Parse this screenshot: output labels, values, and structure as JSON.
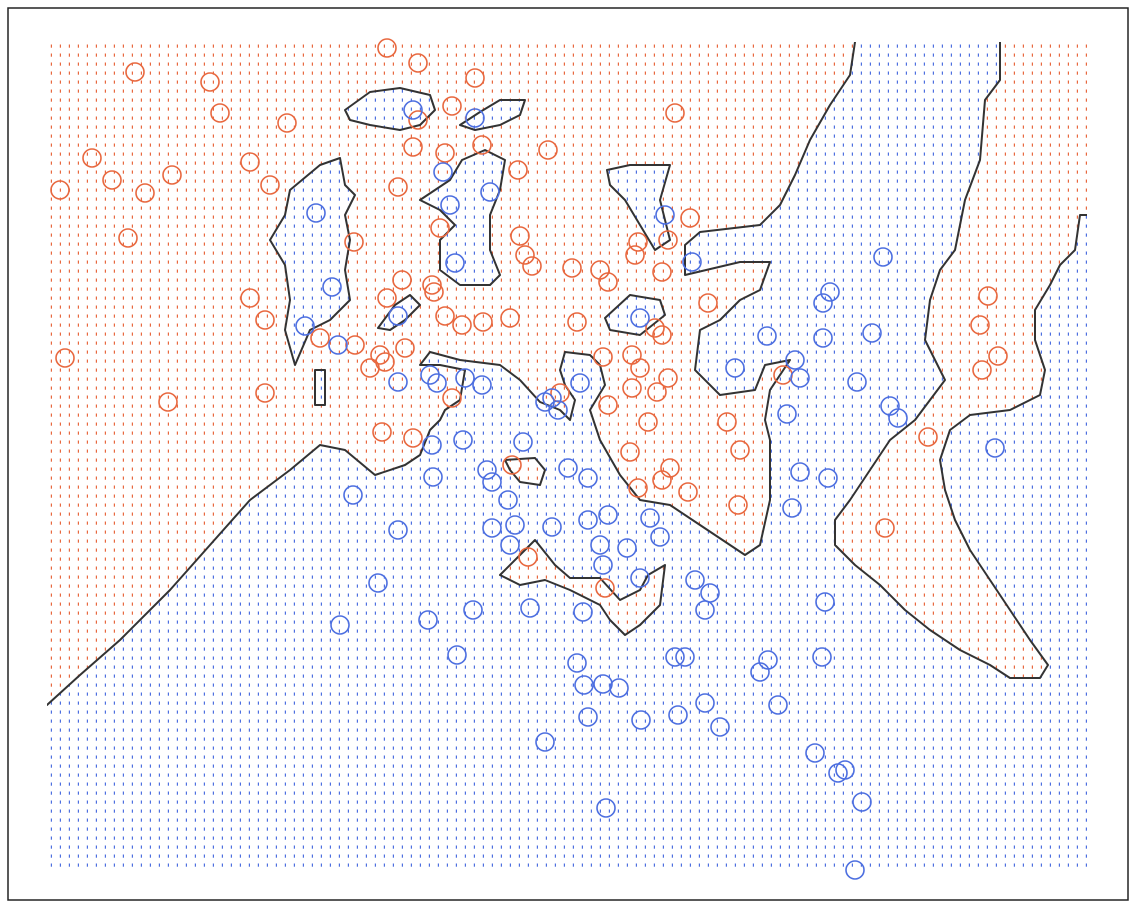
{
  "chart_data": {
    "type": "scatter",
    "xlim": [
      47,
      1087
    ],
    "ylim": [
      868,
      42
    ],
    "region_colors": [
      "#e8683f",
      "#4d6fe0"
    ],
    "series": [
      {
        "color": "#e8683f",
        "x": [
          387,
          418,
          135,
          210,
          475,
          220,
          287,
          452,
          418,
          675,
          92,
          112,
          60,
          145,
          172,
          250,
          270,
          413,
          445,
          482,
          548,
          518,
          398,
          128,
          440,
          354,
          520,
          525,
          532,
          638,
          635,
          668,
          690,
          572,
          600,
          608,
          662,
          250,
          402,
          387,
          432,
          434,
          265,
          445,
          462,
          483,
          510,
          577,
          655,
          662,
          708,
          65,
          320,
          355,
          380,
          405,
          385,
          370,
          603,
          632,
          640,
          668,
          632,
          657,
          608,
          648,
          168,
          265,
          560,
          452,
          382,
          413,
          512,
          630,
          670,
          662,
          688,
          638,
          740,
          727,
          738,
          783,
          928,
          980,
          988,
          998,
          982,
          885,
          528,
          605
        ],
        "y": [
          48,
          63,
          72,
          82,
          78,
          113,
          123,
          106,
          120,
          113,
          158,
          180,
          190,
          193,
          175,
          162,
          185,
          147,
          153,
          145,
          150,
          170,
          187,
          238,
          228,
          242,
          236,
          255,
          266,
          242,
          255,
          240,
          218,
          268,
          270,
          282,
          272,
          298,
          280,
          298,
          285,
          292,
          320,
          316,
          325,
          322,
          318,
          322,
          328,
          335,
          303,
          358,
          338,
          345,
          355,
          348,
          362,
          368,
          357,
          355,
          368,
          378,
          388,
          392,
          405,
          422,
          402,
          393,
          393,
          398,
          432,
          438,
          465,
          452,
          468,
          480,
          492,
          488,
          450,
          422,
          505,
          375,
          437,
          325,
          296,
          356,
          370,
          528,
          557,
          588
        ]
      },
      {
        "color": "#4d6fe0",
        "x": [
          413,
          475,
          316,
          450,
          490,
          443,
          665,
          455,
          692,
          883,
          332,
          398,
          305,
          338,
          640,
          767,
          823,
          830,
          823,
          872,
          430,
          465,
          437,
          398,
          482,
          580,
          795,
          735,
          800,
          857,
          890,
          898,
          787,
          552,
          558,
          545,
          432,
          463,
          523,
          433,
          487,
          492,
          568,
          588,
          800,
          828,
          995,
          353,
          508,
          792,
          398,
          492,
          515,
          552,
          588,
          608,
          650,
          660,
          510,
          600,
          627,
          603,
          378,
          640,
          695,
          710,
          473,
          530,
          583,
          705,
          340,
          428,
          825,
          457,
          577,
          675,
          685,
          768,
          760,
          822,
          584,
          603,
          619,
          778,
          705,
          588,
          641,
          678,
          720,
          545,
          815,
          838,
          845,
          862,
          606,
          855
        ],
        "y": [
          110,
          118,
          213,
          205,
          192,
          172,
          215,
          263,
          262,
          257,
          287,
          316,
          326,
          345,
          318,
          336,
          303,
          292,
          338,
          333,
          375,
          378,
          383,
          382,
          385,
          383,
          360,
          368,
          378,
          382,
          406,
          418,
          414,
          398,
          410,
          402,
          445,
          440,
          442,
          477,
          470,
          482,
          468,
          478,
          472,
          478,
          448,
          495,
          500,
          508,
          530,
          528,
          525,
          527,
          520,
          515,
          518,
          537,
          545,
          545,
          548,
          565,
          583,
          578,
          580,
          593,
          610,
          608,
          612,
          610,
          625,
          620,
          602,
          655,
          663,
          657,
          657,
          660,
          672,
          657,
          685,
          684,
          688,
          705,
          703,
          717,
          720,
          715,
          727,
          742,
          753,
          773,
          770,
          802,
          808,
          870
        ]
      }
    ],
    "regions": [
      [
        [
          30,
          30
        ],
        [
          855,
          30
        ],
        [
          855,
          42
        ],
        [
          850,
          75
        ],
        [
          830,
          105
        ],
        [
          810,
          140
        ],
        [
          795,
          175
        ],
        [
          780,
          205
        ],
        [
          760,
          225
        ],
        [
          700,
          232
        ],
        [
          685,
          245
        ],
        [
          685,
          275
        ],
        [
          740,
          262
        ],
        [
          770,
          262
        ],
        [
          760,
          290
        ],
        [
          740,
          300
        ],
        [
          720,
          320
        ],
        [
          700,
          330
        ],
        [
          695,
          370
        ],
        [
          720,
          395
        ],
        [
          755,
          390
        ],
        [
          765,
          365
        ],
        [
          790,
          360
        ],
        [
          770,
          390
        ],
        [
          765,
          420
        ],
        [
          770,
          440
        ],
        [
          770,
          500
        ],
        [
          760,
          545
        ],
        [
          745,
          555
        ],
        [
          700,
          525
        ],
        [
          670,
          505
        ],
        [
          640,
          500
        ],
        [
          620,
          475
        ],
        [
          600,
          440
        ],
        [
          590,
          410
        ],
        [
          605,
          385
        ],
        [
          600,
          365
        ],
        [
          590,
          355
        ],
        [
          565,
          352
        ],
        [
          560,
          370
        ],
        [
          565,
          385
        ],
        [
          575,
          400
        ],
        [
          570,
          420
        ],
        [
          560,
          410
        ],
        [
          540,
          402
        ],
        [
          520,
          380
        ],
        [
          500,
          365
        ],
        [
          460,
          360
        ],
        [
          430,
          352
        ],
        [
          420,
          365
        ],
        [
          440,
          365
        ],
        [
          465,
          370
        ],
        [
          460,
          400
        ],
        [
          445,
          410
        ],
        [
          440,
          420
        ],
        [
          430,
          430
        ],
        [
          420,
          455
        ],
        [
          405,
          465
        ],
        [
          375,
          475
        ],
        [
          345,
          450
        ],
        [
          320,
          445
        ],
        [
          290,
          470
        ],
        [
          250,
          500
        ],
        [
          210,
          545
        ],
        [
          170,
          590
        ],
        [
          120,
          640
        ],
        [
          80,
          675
        ],
        [
          47,
          705
        ],
        [
          30,
          710
        ]
      ],
      [
        [
          290,
          190
        ],
        [
          320,
          165
        ],
        [
          340,
          158
        ],
        [
          345,
          185
        ],
        [
          355,
          195
        ],
        [
          345,
          215
        ],
        [
          350,
          240
        ],
        [
          345,
          270
        ],
        [
          350,
          300
        ],
        [
          330,
          320
        ],
        [
          310,
          330
        ],
        [
          295,
          365
        ],
        [
          285,
          330
        ],
        [
          290,
          300
        ],
        [
          285,
          265
        ],
        [
          270,
          240
        ],
        [
          285,
          215
        ]
      ],
      [
        [
          315,
          370
        ],
        [
          325,
          370
        ],
        [
          325,
          405
        ],
        [
          315,
          405
        ]
      ],
      [
        [
          345,
          110
        ],
        [
          370,
          92
        ],
        [
          400,
          88
        ],
        [
          430,
          95
        ],
        [
          435,
          110
        ],
        [
          420,
          125
        ],
        [
          400,
          130
        ],
        [
          370,
          125
        ],
        [
          350,
          120
        ]
      ],
      [
        [
          460,
          125
        ],
        [
          480,
          112
        ],
        [
          500,
          100
        ],
        [
          525,
          100
        ],
        [
          520,
          115
        ],
        [
          500,
          125
        ],
        [
          475,
          130
        ]
      ],
      [
        [
          420,
          200
        ],
        [
          450,
          180
        ],
        [
          462,
          160
        ],
        [
          485,
          150
        ],
        [
          505,
          160
        ],
        [
          500,
          190
        ],
        [
          490,
          215
        ],
        [
          490,
          250
        ],
        [
          500,
          275
        ],
        [
          490,
          285
        ],
        [
          460,
          285
        ],
        [
          440,
          270
        ],
        [
          440,
          240
        ],
        [
          455,
          225
        ],
        [
          440,
          210
        ]
      ],
      [
        [
          378,
          328
        ],
        [
          395,
          305
        ],
        [
          410,
          295
        ],
        [
          420,
          305
        ],
        [
          405,
          320
        ],
        [
          390,
          330
        ]
      ],
      [
        [
          607,
          170
        ],
        [
          630,
          165
        ],
        [
          670,
          165
        ],
        [
          660,
          200
        ],
        [
          670,
          240
        ],
        [
          655,
          250
        ],
        [
          640,
          225
        ],
        [
          625,
          200
        ],
        [
          610,
          185
        ]
      ],
      [
        [
          605,
          318
        ],
        [
          630,
          295
        ],
        [
          660,
          300
        ],
        [
          665,
          315
        ],
        [
          640,
          335
        ],
        [
          610,
          330
        ]
      ],
      [
        [
          505,
          460
        ],
        [
          535,
          458
        ],
        [
          545,
          470
        ],
        [
          540,
          485
        ],
        [
          520,
          482
        ],
        [
          510,
          470
        ]
      ],
      [
        [
          500,
          575
        ],
        [
          520,
          555
        ],
        [
          535,
          540
        ],
        [
          555,
          565
        ],
        [
          570,
          578
        ],
        [
          600,
          578
        ],
        [
          620,
          600
        ],
        [
          640,
          590
        ],
        [
          648,
          575
        ],
        [
          665,
          565
        ],
        [
          660,
          605
        ],
        [
          640,
          625
        ],
        [
          625,
          635
        ],
        [
          610,
          620
        ],
        [
          600,
          605
        ],
        [
          570,
          590
        ],
        [
          545,
          580
        ],
        [
          520,
          585
        ]
      ],
      [
        [
          1000,
          30
        ],
        [
          1000,
          80
        ],
        [
          985,
          100
        ],
        [
          980,
          160
        ],
        [
          965,
          200
        ],
        [
          955,
          250
        ],
        [
          940,
          270
        ],
        [
          930,
          300
        ],
        [
          925,
          340
        ],
        [
          935,
          360
        ],
        [
          945,
          380
        ],
        [
          930,
          400
        ],
        [
          915,
          420
        ],
        [
          890,
          440
        ],
        [
          870,
          470
        ],
        [
          850,
          500
        ],
        [
          835,
          520
        ],
        [
          835,
          545
        ],
        [
          855,
          565
        ],
        [
          880,
          585
        ],
        [
          905,
          610
        ],
        [
          930,
          630
        ],
        [
          960,
          650
        ],
        [
          990,
          665
        ],
        [
          1010,
          678
        ],
        [
          1040,
          678
        ],
        [
          1048,
          665
        ],
        [
          1030,
          640
        ],
        [
          1010,
          610
        ],
        [
          990,
          580
        ],
        [
          970,
          550
        ],
        [
          955,
          520
        ],
        [
          945,
          490
        ],
        [
          940,
          460
        ],
        [
          950,
          430
        ],
        [
          970,
          415
        ],
        [
          1010,
          410
        ],
        [
          1040,
          395
        ],
        [
          1045,
          370
        ],
        [
          1035,
          340
        ],
        [
          1035,
          310
        ],
        [
          1050,
          285
        ],
        [
          1060,
          265
        ],
        [
          1075,
          250
        ],
        [
          1080,
          215
        ],
        [
          1100,
          215
        ],
        [
          1100,
          30
        ]
      ]
    ]
  }
}
